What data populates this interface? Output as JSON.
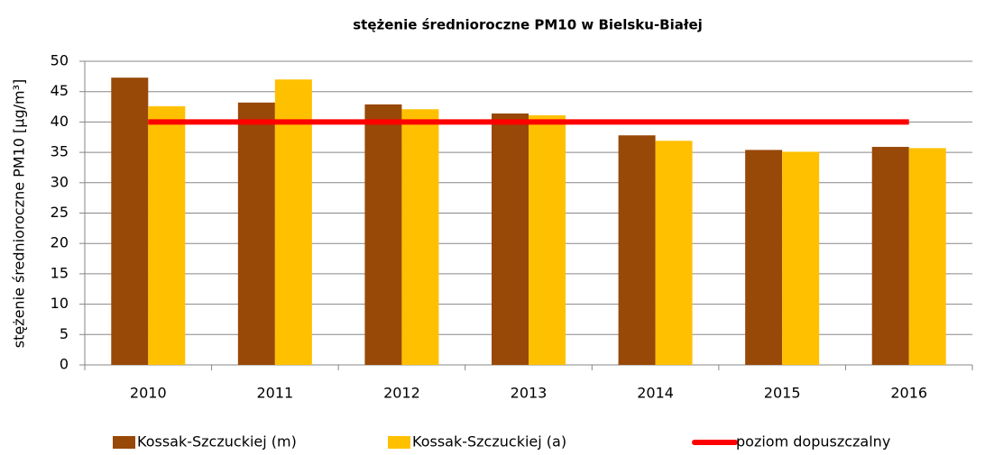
{
  "chart_data": {
    "type": "bar",
    "title": "stężenie średnioroczne PM10 w Bielsku-Białej",
    "y_label": "stężenie średnioroczne PM10 [µg/m³]",
    "categories": [
      "2010",
      "2011",
      "2012",
      "2013",
      "2014",
      "2015",
      "2016"
    ],
    "series": [
      {
        "name": "Kossak-Szczuckiej (m)",
        "color": "#984807",
        "values": [
          47.3,
          43.2,
          42.9,
          41.4,
          37.8,
          35.4,
          35.9
        ]
      },
      {
        "name": "Kossak-Szczuckiej (a)",
        "color": "#ffc000",
        "values": [
          42.6,
          47.0,
          42.1,
          41.1,
          36.9,
          35.1,
          35.7
        ]
      },
      {
        "name": "poziom dopuszczalny",
        "color": "#ff0000",
        "type": "line",
        "values": [
          40,
          40,
          40,
          40,
          40,
          40,
          40
        ]
      }
    ],
    "ylim": [
      0,
      50
    ],
    "yticks": [
      0,
      5,
      10,
      15,
      20,
      25,
      30,
      35,
      40,
      45,
      50
    ],
    "grid": true,
    "legend": "bottom"
  }
}
